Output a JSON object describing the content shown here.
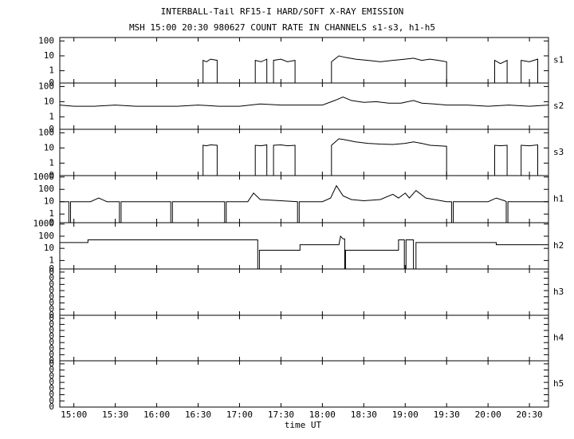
{
  "figure": {
    "title": "INTERBALL-Tail RF15-I HARD/SOFT X-RAY EMISSION",
    "subtitle": "MSH 15:00 20:30 980627  COUNT RATE IN CHANNELS s1-s3, h1-h5",
    "xlabel": "time UT"
  },
  "chart_data": [
    {
      "type": "line",
      "label": "s1",
      "log_scale": true,
      "color": "#000000",
      "ylim": [
        0.15,
        170
      ],
      "yticks": [
        0,
        1,
        10,
        100
      ],
      "x": [
        14.83,
        16.56,
        16.56,
        16.6,
        16.65,
        16.73,
        16.73,
        17.19,
        17.19,
        17.26,
        17.33,
        17.33,
        17.41,
        17.41,
        17.5,
        17.58,
        17.67,
        17.67,
        18.11,
        18.11,
        18.2,
        18.27,
        18.4,
        18.55,
        18.7,
        18.85,
        19.0,
        19.1,
        19.2,
        19.3,
        19.4,
        19.5,
        19.5,
        20.08,
        20.08,
        20.15,
        20.23,
        20.23,
        20.4,
        20.4,
        20.5,
        20.6,
        20.6,
        20.73
      ],
      "values": [
        0,
        0,
        5,
        4,
        6,
        5,
        0,
        0,
        5,
        4,
        6,
        0,
        0,
        5,
        6,
        4,
        5,
        0,
        0,
        4,
        10,
        8,
        6,
        5,
        4,
        5,
        6,
        7,
        5,
        6,
        5,
        4,
        0,
        0,
        5,
        3,
        5,
        0,
        0,
        5,
        4,
        6,
        0,
        0
      ]
    },
    {
      "type": "line",
      "label": "s2",
      "log_scale": true,
      "color": "#000000",
      "ylim": [
        0.15,
        170
      ],
      "yticks": [
        0,
        1,
        10,
        100
      ],
      "x": [
        14.83,
        15.0,
        15.25,
        15.5,
        15.75,
        16.0,
        16.25,
        16.5,
        16.75,
        17.0,
        17.25,
        17.5,
        17.75,
        18.0,
        18.15,
        18.25,
        18.35,
        18.5,
        18.65,
        18.8,
        18.95,
        19.1,
        19.2,
        19.35,
        19.5,
        19.75,
        20.0,
        20.25,
        20.5,
        20.73
      ],
      "values": [
        6,
        5,
        5,
        6,
        5,
        5,
        5,
        6,
        5,
        5,
        7,
        6,
        6,
        6,
        12,
        20,
        12,
        9,
        10,
        8,
        8,
        12,
        8,
        7,
        6,
        6,
        5,
        6,
        5,
        6
      ]
    },
    {
      "type": "line",
      "label": "s3",
      "log_scale": true,
      "color": "#000000",
      "ylim": [
        0.15,
        170
      ],
      "yticks": [
        0,
        1,
        10,
        100
      ],
      "x": [
        14.83,
        16.56,
        16.56,
        16.6,
        16.65,
        16.73,
        16.73,
        17.19,
        17.19,
        17.26,
        17.33,
        17.33,
        17.41,
        17.41,
        17.5,
        17.58,
        17.67,
        17.67,
        18.11,
        18.11,
        18.2,
        18.27,
        18.4,
        18.55,
        18.7,
        18.85,
        19.0,
        19.1,
        19.2,
        19.3,
        19.4,
        19.5,
        19.5,
        20.08,
        20.08,
        20.15,
        20.23,
        20.23,
        20.4,
        20.4,
        20.5,
        20.6,
        20.6,
        20.73
      ],
      "values": [
        0,
        0,
        15,
        14,
        16,
        15,
        0,
        0,
        15,
        14,
        16,
        0,
        0,
        15,
        16,
        14,
        15,
        0,
        0,
        15,
        40,
        35,
        25,
        20,
        18,
        17,
        20,
        25,
        20,
        15,
        14,
        13,
        0,
        0,
        15,
        14,
        15,
        0,
        0,
        15,
        14,
        16,
        0,
        0
      ]
    },
    {
      "type": "line",
      "label": "h1",
      "log_scale": true,
      "color": "#000000",
      "ylim": [
        0.2,
        1300
      ],
      "yticks": [
        0,
        1,
        10,
        100,
        1000
      ],
      "x": [
        14.83,
        14.94,
        14.94,
        14.96,
        14.96,
        15.2,
        15.3,
        15.4,
        15.55,
        15.55,
        15.57,
        15.57,
        16.17,
        16.17,
        16.19,
        16.19,
        16.82,
        16.82,
        16.84,
        16.84,
        17.1,
        17.17,
        17.25,
        17.5,
        17.7,
        17.7,
        17.72,
        17.72,
        18.0,
        18.1,
        18.17,
        18.25,
        18.35,
        18.5,
        18.7,
        18.85,
        18.92,
        19.0,
        19.05,
        19.13,
        19.25,
        19.5,
        19.56,
        19.56,
        19.58,
        19.58,
        20.0,
        20.1,
        20.2,
        20.22,
        20.22,
        20.24,
        20.24,
        20.5,
        20.73
      ],
      "values": [
        10,
        10,
        0,
        0,
        10,
        10,
        20,
        10,
        10,
        0,
        0,
        10,
        10,
        0,
        0,
        10,
        10,
        0,
        0,
        10,
        10,
        50,
        15,
        12,
        10,
        0,
        0,
        10,
        10,
        20,
        200,
        30,
        15,
        12,
        15,
        40,
        20,
        50,
        20,
        80,
        20,
        10,
        10,
        0,
        0,
        10,
        10,
        20,
        12,
        10,
        0,
        0,
        10,
        10,
        10
      ]
    },
    {
      "type": "line",
      "label": "h2",
      "log_scale": true,
      "color": "#000000",
      "ylim": [
        0.2,
        1300
      ],
      "yticks": [
        0,
        1,
        10,
        100,
        1000
      ],
      "x": [
        14.83,
        15.17,
        15.17,
        17.22,
        17.22,
        17.24,
        17.24,
        17.73,
        17.73,
        18.2,
        18.22,
        18.25,
        18.27,
        18.27,
        18.28,
        18.28,
        18.92,
        18.92,
        18.99,
        18.99,
        19.01,
        19.01,
        19.1,
        19.1,
        19.13,
        19.13,
        20.1,
        20.1,
        20.73
      ],
      "values": [
        30,
        30,
        50,
        50,
        0,
        0,
        7,
        7,
        20,
        20,
        100,
        60,
        60,
        0,
        0,
        7,
        7,
        50,
        50,
        0,
        0,
        50,
        50,
        0,
        0,
        30,
        30,
        20,
        20
      ]
    },
    {
      "type": "line",
      "label": "h3",
      "log_scale": false,
      "ylim": [
        0,
        0.45
      ],
      "yticks": [
        {
          "value": 0,
          "label": "0"
        },
        {
          "value": 0.06,
          "label": "0"
        },
        {
          "value": 0.12,
          "label": "0"
        },
        {
          "value": 0.18,
          "label": "0"
        },
        {
          "value": 0.24,
          "label": "0"
        },
        {
          "value": 0.3,
          "label": "0"
        },
        {
          "value": 0.36,
          "label": "0"
        },
        {
          "value": 0.42,
          "label": "0"
        }
      ]
    },
    {
      "type": "line",
      "label": "h4",
      "log_scale": false,
      "ylim": [
        0,
        0.45
      ],
      "yticks": [
        {
          "value": 0,
          "label": "0"
        },
        {
          "value": 0.06,
          "label": "0"
        },
        {
          "value": 0.12,
          "label": "0"
        },
        {
          "value": 0.18,
          "label": "0"
        },
        {
          "value": 0.24,
          "label": "0"
        },
        {
          "value": 0.3,
          "label": "0"
        },
        {
          "value": 0.36,
          "label": "0"
        },
        {
          "value": 0.42,
          "label": "0"
        }
      ]
    },
    {
      "type": "line",
      "label": "h5",
      "log_scale": false,
      "ylim": [
        0,
        0.45
      ],
      "yticks": [
        {
          "value": 0,
          "label": "0"
        },
        {
          "value": 0.06,
          "label": "0"
        },
        {
          "value": 0.12,
          "label": "0"
        },
        {
          "value": 0.18,
          "label": "0"
        },
        {
          "value": 0.24,
          "label": "0"
        },
        {
          "value": 0.3,
          "label": "0"
        },
        {
          "value": 0.36,
          "label": "0"
        },
        {
          "value": 0.42,
          "label": "0"
        }
      ],
      "xlim": [
        14.83,
        20.73
      ],
      "xticks": [
        {
          "value": 15,
          "label": "15:00"
        },
        {
          "value": 15.5,
          "label": "15:30"
        },
        {
          "value": 16,
          "label": "16:00"
        },
        {
          "value": 16.5,
          "label": "16:30"
        },
        {
          "value": 17,
          "label": "17:00"
        },
        {
          "value": 17.5,
          "label": "17:30"
        },
        {
          "value": 18,
          "label": "18:00"
        },
        {
          "value": 18.5,
          "label": "18:30"
        },
        {
          "value": 19,
          "label": "19:00"
        },
        {
          "value": 19.5,
          "label": "19:30"
        },
        {
          "value": 20,
          "label": "20:00"
        },
        {
          "value": 20.5,
          "label": "20:30"
        }
      ]
    }
  ]
}
